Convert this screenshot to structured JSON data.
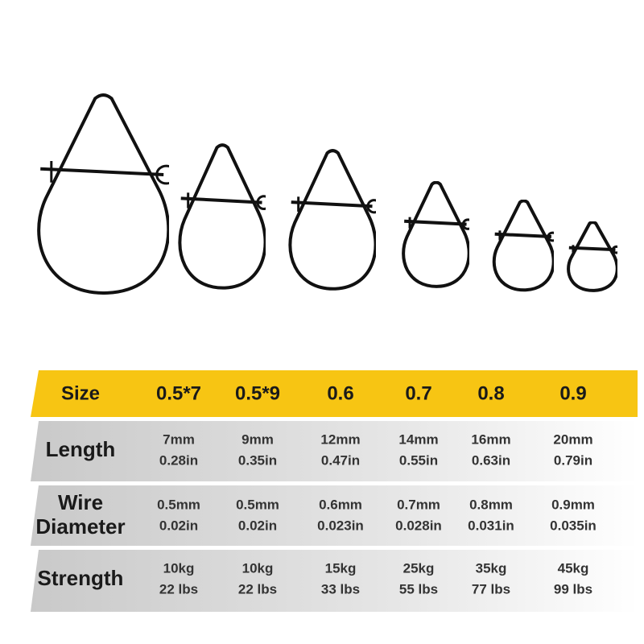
{
  "table": {
    "header": [
      "Size",
      "0.5*7",
      "0.5*9",
      "0.6",
      "0.7",
      "0.8",
      "0.9"
    ],
    "rows": [
      {
        "label": [
          "Length"
        ],
        "cells": [
          [
            "7mm",
            "0.28in"
          ],
          [
            "9mm",
            "0.35in"
          ],
          [
            "12mm",
            "0.47in"
          ],
          [
            "14mm",
            "0.55in"
          ],
          [
            "16mm",
            "0.63in"
          ],
          [
            "20mm",
            "0.79in"
          ]
        ]
      },
      {
        "label": [
          "Wire",
          "Diameter"
        ],
        "cells": [
          [
            "0.5mm",
            "0.02in"
          ],
          [
            "0.5mm",
            "0.02in"
          ],
          [
            "0.6mm",
            "0.023in"
          ],
          [
            "0.7mm",
            "0.028in"
          ],
          [
            "0.8mm",
            "0.031in"
          ],
          [
            "0.9mm",
            "0.035in"
          ]
        ]
      },
      {
        "label": [
          "Strength"
        ],
        "cells": [
          [
            "10kg",
            "22 lbs"
          ],
          [
            "10kg",
            "22 lbs"
          ],
          [
            "15kg",
            "33 lbs"
          ],
          [
            "25kg",
            "55 lbs"
          ],
          [
            "35kg",
            "77 lbs"
          ],
          [
            "45kg",
            "99 lbs"
          ]
        ]
      }
    ]
  }
}
